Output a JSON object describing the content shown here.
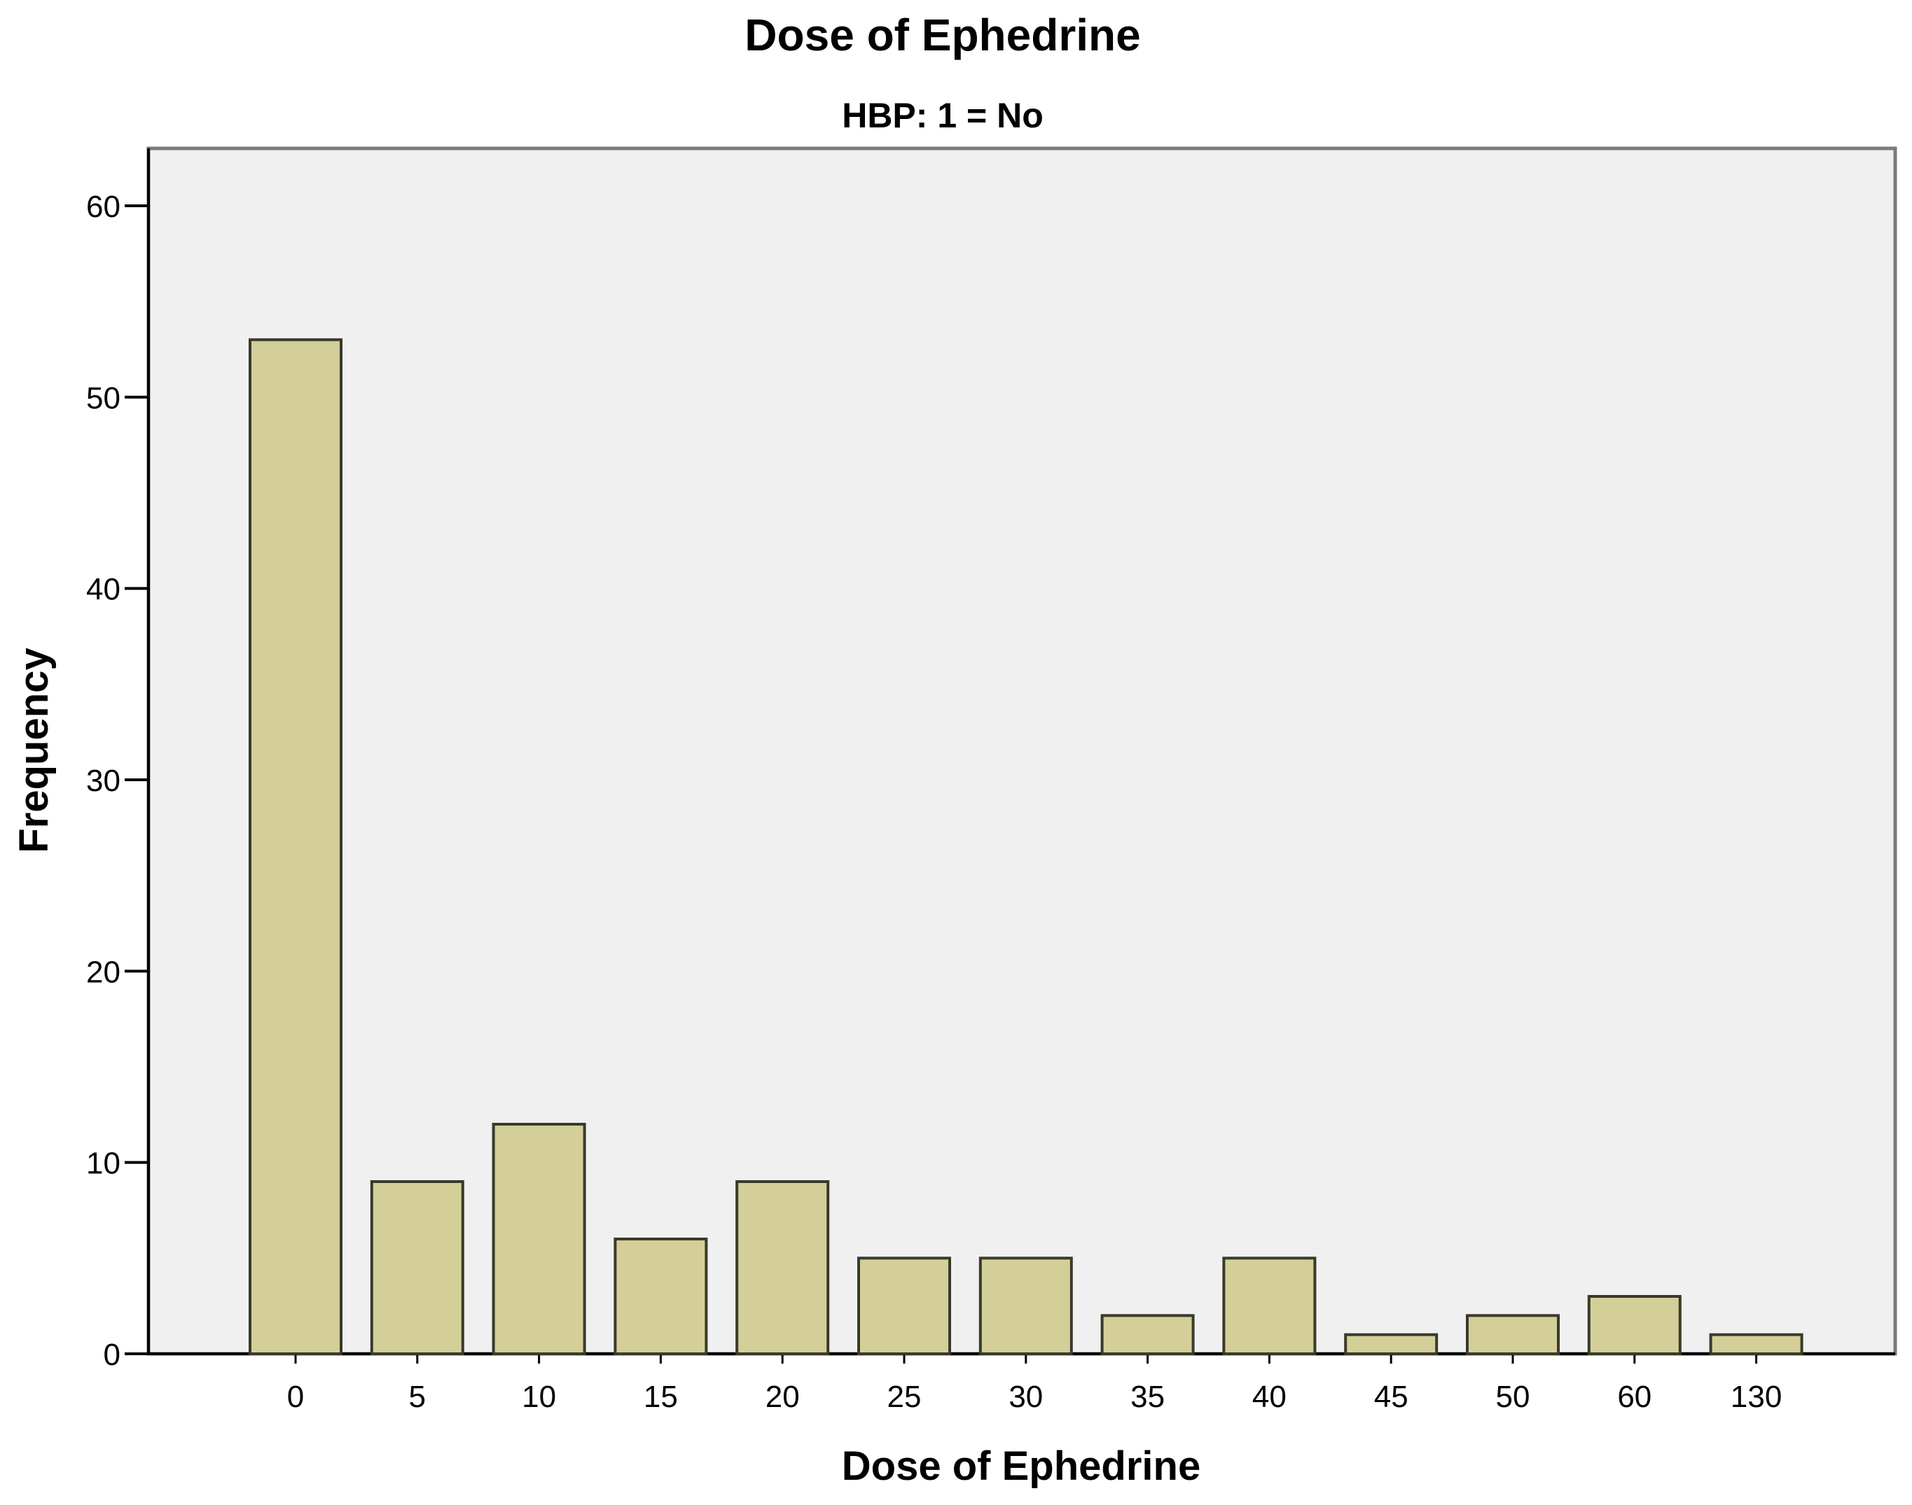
{
  "chart_data": {
    "type": "bar",
    "title": "Dose of Ephedrine",
    "subtitle": "HBP: 1 = No",
    "xlabel": "Dose of Ephedrine",
    "ylabel": "Frequency",
    "categories": [
      "0",
      "5",
      "10",
      "15",
      "20",
      "25",
      "30",
      "35",
      "40",
      "45",
      "50",
      "60",
      "130"
    ],
    "values": [
      53,
      9,
      12,
      6,
      9,
      5,
      5,
      2,
      5,
      1,
      2,
      3,
      1
    ],
    "ylim": [
      0,
      63
    ],
    "yticks": [
      0,
      10,
      20,
      30,
      40,
      50,
      60
    ],
    "grid": false,
    "legend": "none",
    "colors": {
      "bar_fill": "#d4cf99",
      "bar_stroke": "#3a3a2a",
      "plot_background": "#f0f0f0",
      "axis": "#000000",
      "frame": "#7a7a7a"
    }
  }
}
